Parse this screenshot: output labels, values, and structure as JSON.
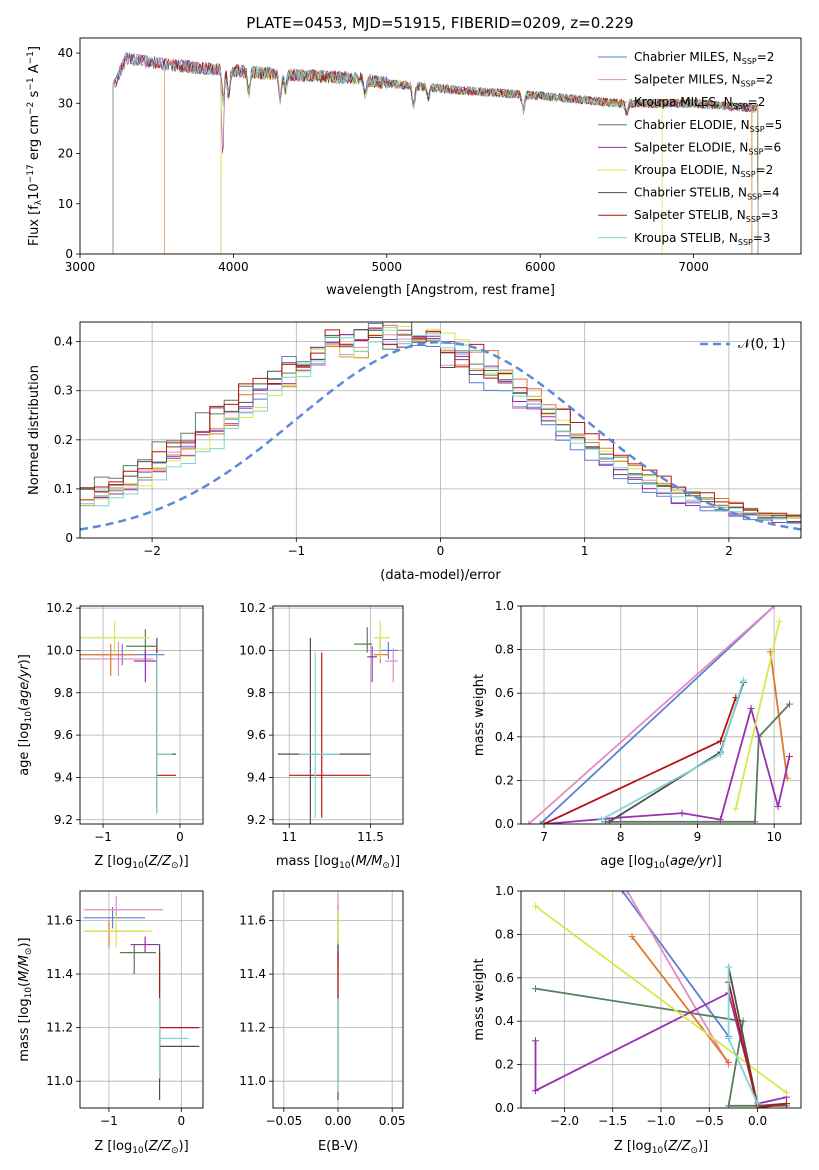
{
  "title": "PLATE=0453, MJD=51915, FIBERID=0209, z=0.229",
  "models": [
    {
      "name": "Chabrier MILES, N_SSP=2",
      "label": "Chabrier MILES, N",
      "sub": "SSP",
      "suffix": "=2",
      "color": "#5b7fd6"
    },
    {
      "name": "Salpeter MILES, N_SSP=2",
      "label": "Salpeter MILES, N",
      "sub": "SSP",
      "suffix": "=2",
      "color": "#e58ac2"
    },
    {
      "name": "Kroupa MILES, N_SSP=2",
      "label": "Kroupa MILES, N",
      "sub": "SSP",
      "suffix": "=2",
      "color": "#e07a2a"
    },
    {
      "name": "Chabrier ELODIE, N_SSP=5",
      "label": "Chabrier ELODIE, N",
      "sub": "SSP",
      "suffix": "=5",
      "color": "#5a7d5a"
    },
    {
      "name": "Salpeter ELODIE, N_SSP=6",
      "label": "Salpeter ELODIE, N",
      "sub": "SSP",
      "suffix": "=6",
      "color": "#9a2fb0"
    },
    {
      "name": "Kroupa ELODIE, N_SSP=2",
      "label": "Kroupa ELODIE, N",
      "sub": "SSP",
      "suffix": "=2",
      "color": "#d8e84a"
    },
    {
      "name": "Chabrier STELIB, N_SSP=4",
      "label": "Chabrier STELIB, N",
      "sub": "SSP",
      "suffix": "=4",
      "color": "#505050"
    },
    {
      "name": "Salpeter STELIB, N_SSP=3",
      "label": "Salpeter STELIB, N",
      "sub": "SSP",
      "suffix": "=3",
      "color": "#b51515"
    },
    {
      "name": "Kroupa STELIB, N_SSP=3",
      "label": "Kroupa STELIB, N",
      "sub": "SSP",
      "suffix": "=3",
      "color": "#7fd6d6"
    }
  ],
  "chart_data": [
    {
      "id": "spectrum",
      "type": "line",
      "xlabel": "wavelength [Angstrom, rest frame]",
      "ylabel": "Flux [f_λ 10^-17 erg cm^-2 s^-1 A^-1]",
      "xlim": [
        3000,
        7700
      ],
      "ylim": [
        0,
        43
      ],
      "xticks": [
        3000,
        4000,
        5000,
        6000,
        7000
      ],
      "yticks": [
        0,
        10,
        20,
        30,
        40
      ],
      "grid": false,
      "legend": "top-right",
      "continuum": [
        [
          3215,
          33
        ],
        [
          3300,
          39
        ],
        [
          3500,
          38
        ],
        [
          3800,
          37
        ],
        [
          4000,
          36.5
        ],
        [
          4200,
          36
        ],
        [
          4500,
          35.5
        ],
        [
          4800,
          35
        ],
        [
          5000,
          34
        ],
        [
          5500,
          32.5
        ],
        [
          6000,
          31.5
        ],
        [
          6500,
          30
        ],
        [
          7000,
          30
        ],
        [
          7400,
          29
        ]
      ],
      "model_starts": [
        3215,
        3215,
        3550,
        3920,
        3215,
        3920,
        3215,
        3215,
        3215
      ]
    },
    {
      "id": "residuals",
      "type": "bar",
      "xlabel": "(data-model)/error",
      "ylabel": "Normed distribution",
      "xlim": [
        -2.5,
        2.5
      ],
      "ylim": [
        0,
        0.44
      ],
      "xticks": [
        -2,
        -1,
        0,
        1,
        2
      ],
      "yticks": [
        0.0,
        0.1,
        0.2,
        0.3,
        0.4
      ],
      "grid": true,
      "legend": "top-right",
      "reference": {
        "name": "N(0,1)",
        "label": "𝒩(0, 1)",
        "mean": 0,
        "sigma": 1,
        "color": "#5b8bd6"
      },
      "bin_width": 0.1
    },
    {
      "id": "age-Z",
      "type": "scatter",
      "xlabel": "Z [log10(Z/Z⊙)]",
      "ylabel": "age [log10(age/yr)]",
      "xlim": [
        -1.3,
        0.3
      ],
      "ylim": [
        9.18,
        10.21
      ],
      "xticks": [
        -1,
        0
      ],
      "yticks": [
        9.2,
        9.4,
        9.6,
        9.8,
        10.0,
        10.2
      ],
      "grid": true,
      "points": [
        {
          "x": -0.75,
          "y": 9.98,
          "xerr": [
            0.55,
            0.55
          ],
          "yerr": [
            0.05,
            0.05
          ]
        },
        {
          "x": -0.8,
          "y": 9.96,
          "xerr": [
            0.55,
            0.45
          ],
          "yerr": [
            0.08,
            0.08
          ]
        },
        {
          "x": -0.9,
          "y": 9.98,
          "xerr": [
            0.45,
            0.35
          ],
          "yerr": [
            0.1,
            0.05
          ]
        },
        {
          "x": -0.45,
          "y": 10.02,
          "xerr": [
            0.25,
            0.15
          ],
          "yerr": [
            0.06,
            0.08
          ]
        },
        {
          "x": -0.45,
          "y": 9.95,
          "xerr": [
            0.15,
            0.15
          ],
          "yerr": [
            0.1,
            0.05
          ]
        },
        {
          "x": -0.85,
          "y": 10.06,
          "xerr": [
            0.45,
            0.45
          ],
          "yerr": [
            0.08,
            0.08
          ]
        },
        {
          "x": -0.3,
          "y": 9.51,
          "xerr": [
            0.0,
            0.25
          ],
          "yerr": [
            0.28,
            0.55
          ]
        },
        {
          "x": -0.3,
          "y": 9.41,
          "xerr": [
            0.0,
            0.25
          ],
          "yerr": [
            0.15,
            0.6
          ]
        },
        {
          "x": -0.3,
          "y": 9.51,
          "xerr": [
            0.0,
            0.2
          ],
          "yerr": [
            0.28,
            0.48
          ]
        }
      ]
    },
    {
      "id": "age-mass",
      "type": "scatter",
      "xlabel": "mass [log10(M/M⊙)]",
      "ylabel": "",
      "xlim": [
        10.9,
        11.7
      ],
      "ylim": [
        9.18,
        10.21
      ],
      "xticks": [
        11.0,
        11.5
      ],
      "yticks": [
        9.2,
        9.4,
        9.6,
        9.8,
        10.0,
        10.2
      ],
      "grid": true,
      "points": [
        {
          "x": 11.61,
          "y": 10.0,
          "xerr": [
            0.06,
            0.06
          ],
          "yerr": [
            0.04,
            0.04
          ]
        },
        {
          "x": 11.64,
          "y": 9.95,
          "xerr": [
            0.05,
            0.03
          ],
          "yerr": [
            0.1,
            0.06
          ]
        },
        {
          "x": 11.56,
          "y": 9.98,
          "xerr": [
            0.04,
            0.05
          ],
          "yerr": [
            0.04,
            0.08
          ]
        },
        {
          "x": 11.48,
          "y": 10.03,
          "xerr": [
            0.08,
            0.03
          ],
          "yerr": [
            0.04,
            0.08
          ]
        },
        {
          "x": 11.51,
          "y": 9.97,
          "xerr": [
            0.03,
            0.03
          ],
          "yerr": [
            0.12,
            0.05
          ]
        },
        {
          "x": 11.56,
          "y": 10.06,
          "xerr": [
            0.04,
            0.06
          ],
          "yerr": [
            0.1,
            0.08
          ]
        },
        {
          "x": 11.13,
          "y": 9.51,
          "xerr": [
            0.2,
            0.37
          ],
          "yerr": [
            0.35,
            0.55
          ]
        },
        {
          "x": 11.2,
          "y": 9.41,
          "xerr": [
            0.2,
            0.3
          ],
          "yerr": [
            0.2,
            0.58
          ]
        },
        {
          "x": 11.16,
          "y": 9.51,
          "xerr": [
            0.1,
            0.15
          ],
          "yerr": [
            0.3,
            0.48
          ]
        }
      ]
    },
    {
      "id": "weight-age",
      "type": "line",
      "xlabel": "age [log10(age/yr)]",
      "ylabel": "mass weight",
      "xlim": [
        6.7,
        10.35
      ],
      "ylim": [
        0,
        1.0
      ],
      "xticks": [
        7,
        8,
        9,
        10
      ],
      "yticks": [
        0.0,
        0.2,
        0.4,
        0.6,
        0.8,
        1.0
      ],
      "grid": true,
      "series": [
        {
          "x": [
            6.95,
            10.0
          ],
          "y": [
            0.0,
            1.0
          ]
        },
        {
          "x": [
            6.8,
            10.0
          ],
          "y": [
            0.0,
            1.0
          ]
        },
        {
          "x": [
            9.95,
            10.17
          ],
          "y": [
            0.79,
            0.21
          ]
        },
        {
          "x": [
            7.8,
            9.75,
            9.8,
            10.2
          ],
          "y": [
            0.01,
            0.01,
            0.4,
            0.55
          ]
        },
        {
          "x": [
            7.0,
            8.0,
            8.8,
            9.3,
            9.7,
            10.05,
            10.2
          ],
          "y": [
            0.0,
            0.03,
            0.05,
            0.02,
            0.53,
            0.08,
            0.31
          ]
        },
        {
          "x": [
            9.5,
            10.07
          ],
          "y": [
            0.07,
            0.93
          ]
        },
        {
          "x": [
            7.85,
            9.3,
            9.6
          ],
          "y": [
            0.01,
            0.33,
            0.65
          ]
        },
        {
          "x": [
            7.0,
            9.3,
            9.5
          ],
          "y": [
            0.0,
            0.38,
            0.58
          ]
        },
        {
          "x": [
            7.75,
            9.3,
            9.6
          ],
          "y": [
            0.02,
            0.32,
            0.66
          ]
        }
      ]
    },
    {
      "id": "mass-Z",
      "type": "scatter",
      "xlabel": "Z [log10(Z/Z⊙)]",
      "ylabel": "mass [log10(M/M⊙)]",
      "xlim": [
        -1.4,
        0.3
      ],
      "ylim": [
        10.9,
        11.71
      ],
      "xticks": [
        -1,
        0
      ],
      "yticks": [
        11.0,
        11.2,
        11.4,
        11.6
      ],
      "grid": true,
      "points": [
        {
          "x": -0.95,
          "y": 11.61,
          "xerr": [
            0.4,
            0.45
          ],
          "yerr": [
            0.04,
            0.04
          ]
        },
        {
          "x": -0.9,
          "y": 11.64,
          "xerr": [
            0.45,
            0.65
          ],
          "yerr": [
            0.03,
            0.05
          ]
        },
        {
          "x": -1.0,
          "y": 11.56,
          "xerr": [
            0.35,
            0.5
          ],
          "yerr": [
            0.06,
            0.04
          ]
        },
        {
          "x": -0.65,
          "y": 11.48,
          "xerr": [
            0.2,
            0.3
          ],
          "yerr": [
            0.08,
            0.03
          ]
        },
        {
          "x": -0.5,
          "y": 11.51,
          "xerr": [
            0.2,
            0.2
          ],
          "yerr": [
            0.03,
            0.03
          ]
        },
        {
          "x": -0.9,
          "y": 11.56,
          "xerr": [
            0.45,
            0.5
          ],
          "yerr": [
            0.06,
            0.06
          ]
        },
        {
          "x": -0.3,
          "y": 11.13,
          "xerr": [
            0.0,
            0.55
          ],
          "yerr": [
            0.2,
            0.38
          ]
        },
        {
          "x": -0.3,
          "y": 11.2,
          "xerr": [
            0.0,
            0.55
          ],
          "yerr": [
            0.2,
            0.28
          ]
        },
        {
          "x": -0.3,
          "y": 11.16,
          "xerr": [
            0.0,
            0.4
          ],
          "yerr": [
            0.15,
            0.15
          ]
        }
      ]
    },
    {
      "id": "mass-EBV",
      "type": "scatter",
      "xlabel": "E(B-V)",
      "ylabel": "",
      "xlim": [
        -0.06,
        0.06
      ],
      "ylim": [
        10.9,
        11.71
      ],
      "xticks": [
        -0.05,
        0.0,
        0.05
      ],
      "xticklabels": [
        "−0.05",
        "0.00",
        "0.05"
      ],
      "yticks": [
        11.0,
        11.2,
        11.4,
        11.6
      ],
      "grid": true,
      "points": [
        {
          "x": 0.0,
          "y": 11.61,
          "yerr": [
            0.05,
            0.05
          ]
        },
        {
          "x": 0.0,
          "y": 11.64,
          "yerr": [
            0.05,
            0.06
          ]
        },
        {
          "x": 0.0,
          "y": 11.56,
          "yerr": [
            0.05,
            0.05
          ]
        },
        {
          "x": 0.0,
          "y": 11.48,
          "yerr": [
            0.05,
            0.05
          ]
        },
        {
          "x": 0.0,
          "y": 11.51,
          "yerr": [
            0.05,
            0.05
          ]
        },
        {
          "x": 0.0,
          "y": 11.56,
          "yerr": [
            0.05,
            0.08
          ]
        },
        {
          "x": 0.0,
          "y": 11.13,
          "yerr": [
            0.2,
            0.38
          ]
        },
        {
          "x": 0.0,
          "y": 11.2,
          "yerr": [
            0.2,
            0.28
          ]
        },
        {
          "x": 0.0,
          "y": 11.16,
          "yerr": [
            0.2,
            0.15
          ]
        }
      ]
    },
    {
      "id": "weight-Z",
      "type": "line",
      "xlabel": "Z [log10(Z/Z⊙)]",
      "ylabel": "mass weight",
      "xlim": [
        -2.45,
        0.45
      ],
      "ylim": [
        0,
        1.0
      ],
      "xticks": [
        -2.0,
        -1.5,
        -1.0,
        -0.5,
        0.0
      ],
      "xticklabels": [
        "−2.0",
        "−1.5",
        "−1.0",
        "−0.5",
        "0.0"
      ],
      "yticks": [
        0.0,
        0.2,
        0.4,
        0.6,
        0.8,
        1.0
      ],
      "grid": true,
      "series": [
        {
          "x": [
            -1.4,
            -0.3
          ],
          "y": [
            1.0,
            0.33
          ]
        },
        {
          "x": [
            -1.35,
            -0.3
          ],
          "y": [
            1.0,
            0.2
          ]
        },
        {
          "x": [
            -1.3,
            -0.3
          ],
          "y": [
            0.79,
            0.21
          ]
        },
        {
          "x": [
            -2.3,
            -0.15,
            -0.3,
            0.3
          ],
          "y": [
            0.55,
            0.4,
            0.01,
            0.01
          ]
        },
        {
          "x": [
            -2.3,
            -2.3,
            -0.3,
            0.0,
            0.3
          ],
          "y": [
            0.31,
            0.08,
            0.53,
            0.02,
            0.05
          ]
        },
        {
          "x": [
            -2.3,
            0.3
          ],
          "y": [
            0.93,
            0.07
          ]
        },
        {
          "x": [
            -0.3,
            0.0,
            0.3
          ],
          "y": [
            0.65,
            0.01,
            0.02
          ]
        },
        {
          "x": [
            -0.3,
            0.0,
            0.3
          ],
          "y": [
            0.58,
            0.0,
            0.02
          ]
        },
        {
          "x": [
            -0.3,
            -0.3,
            0.0
          ],
          "y": [
            0.65,
            0.32,
            0.02
          ]
        }
      ]
    }
  ]
}
